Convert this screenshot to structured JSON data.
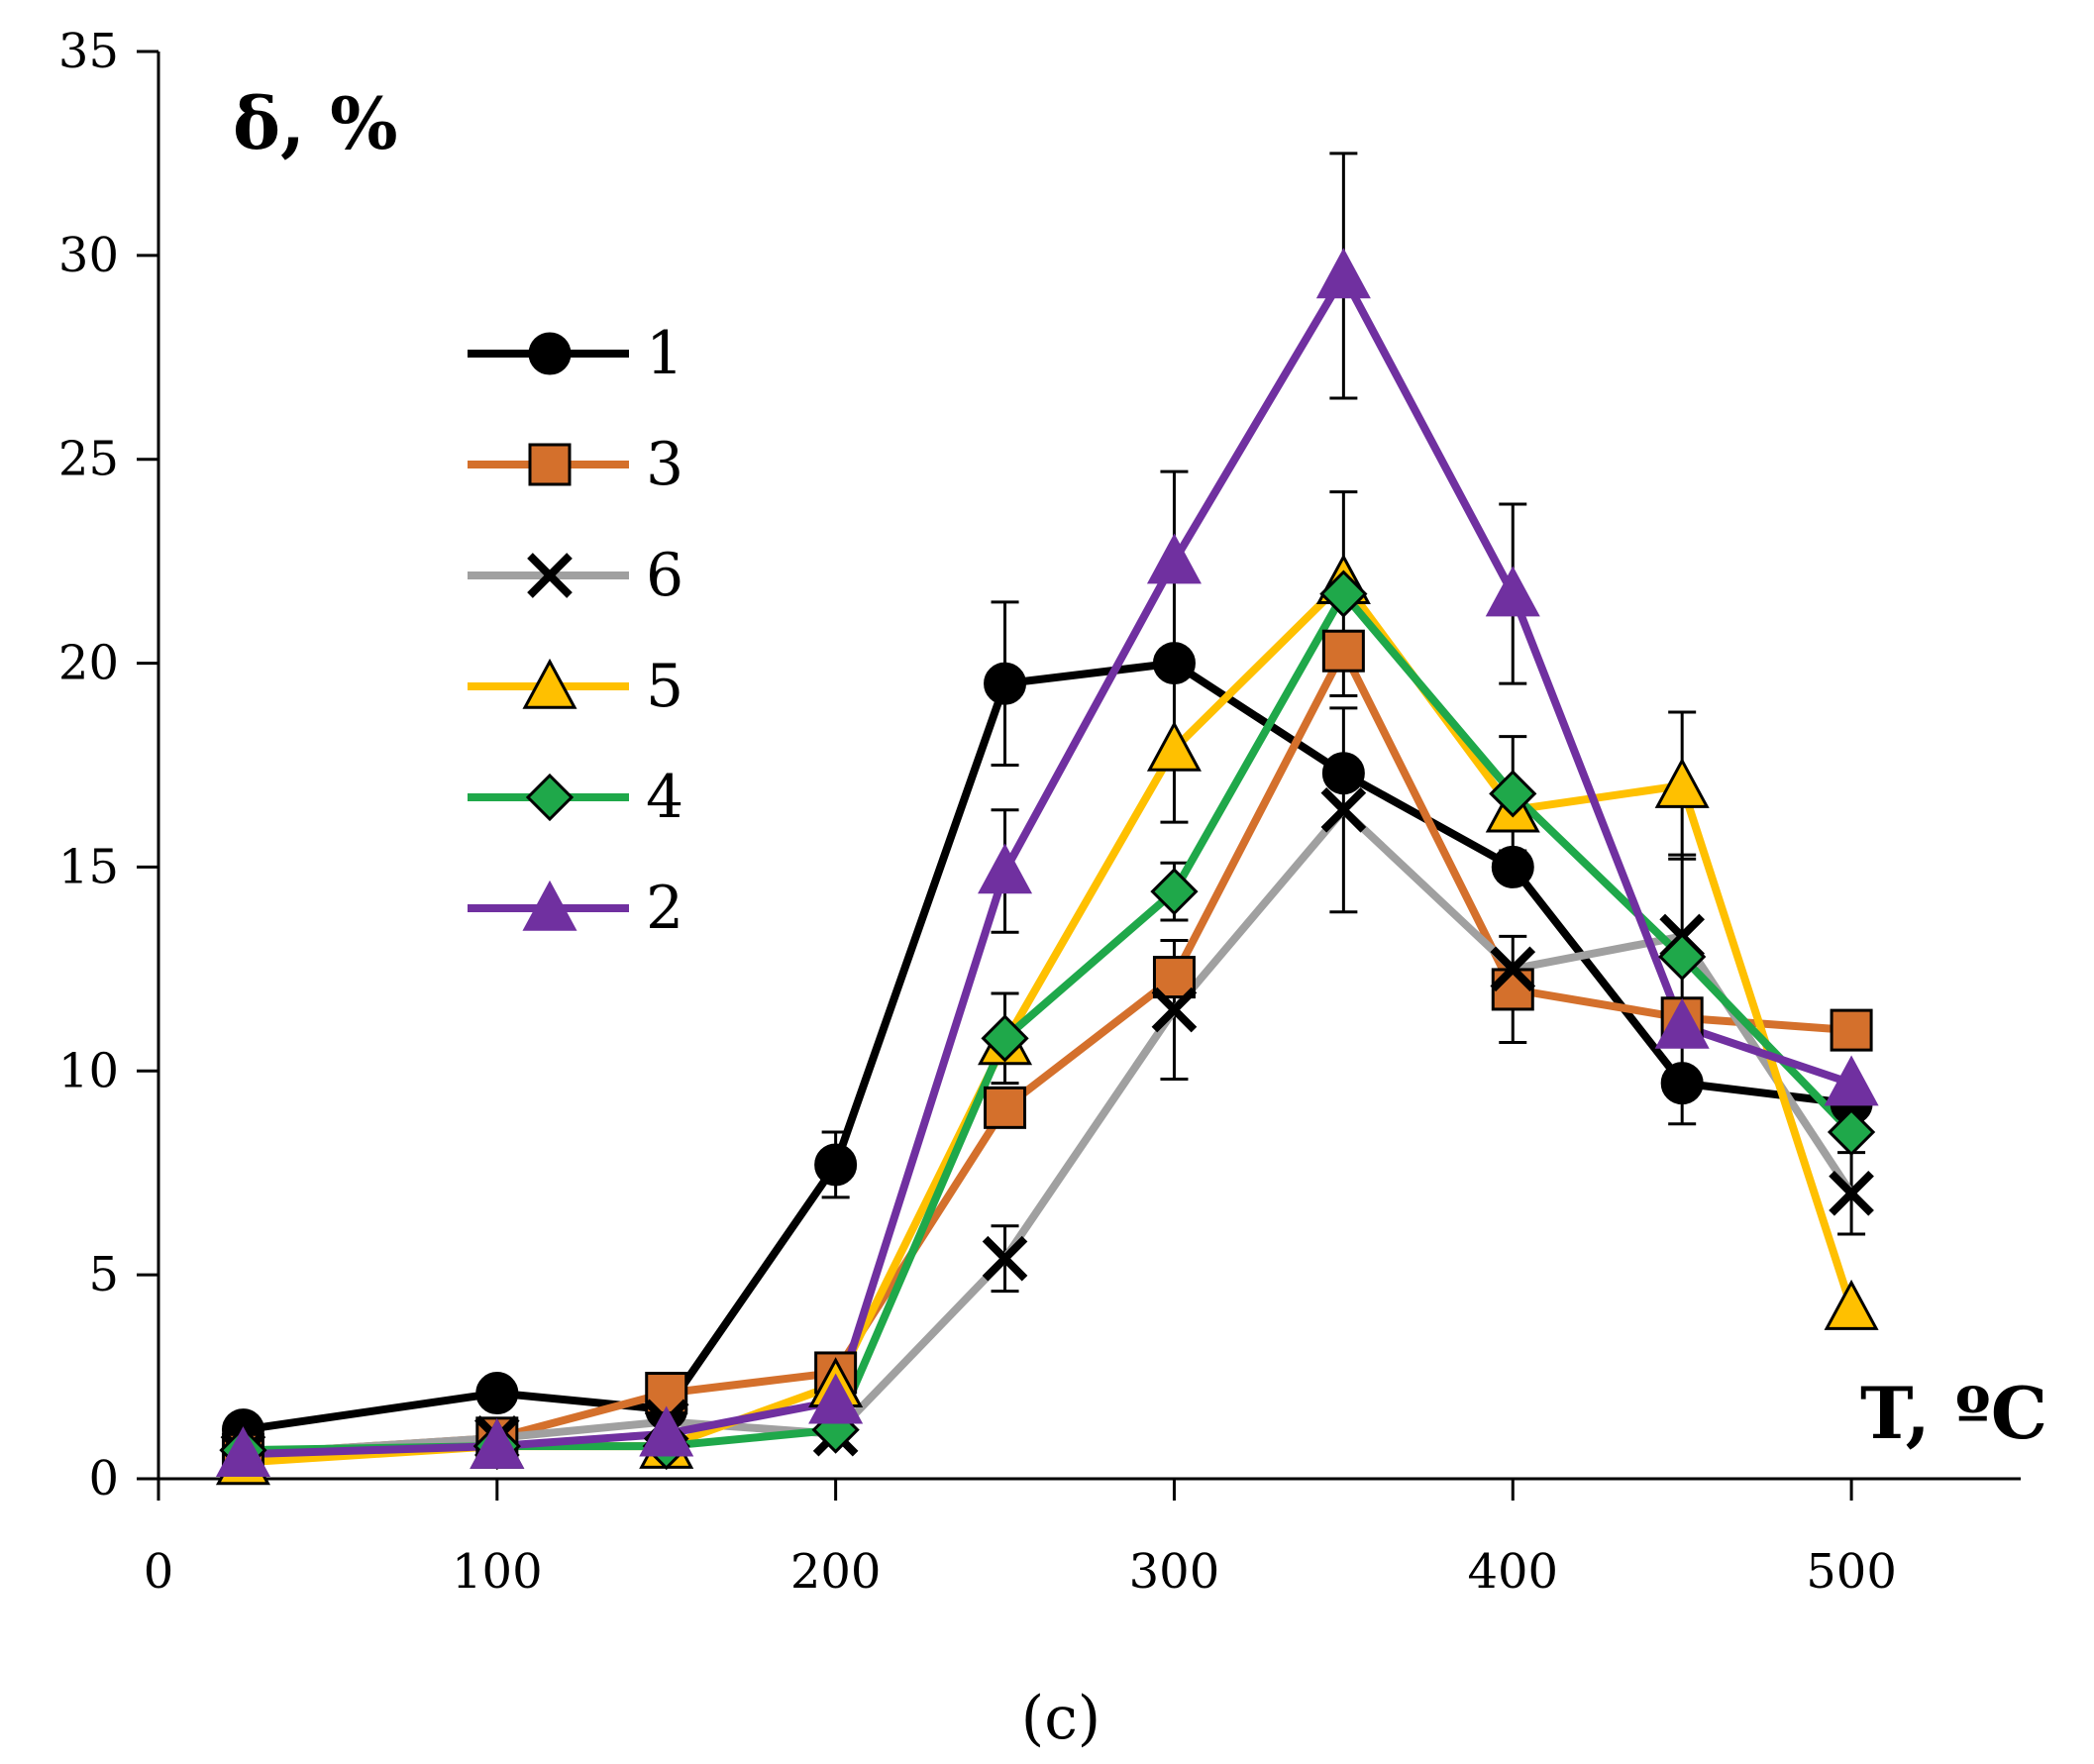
{
  "chart_data": {
    "type": "line",
    "ylabel": "δ, %",
    "xlabel": "T, ºC",
    "panel_label": "(c)",
    "xlim": [
      0,
      550
    ],
    "ylim": [
      0,
      35
    ],
    "x_ticks": [
      "0",
      "100",
      "200",
      "300",
      "400",
      "500"
    ],
    "y_ticks": [
      "0",
      "5",
      "10",
      "15",
      "20",
      "25",
      "30",
      "35"
    ],
    "grid": false,
    "legend_position": "upper-left",
    "x": [
      25,
      100,
      150,
      200,
      250,
      300,
      350,
      400,
      450,
      500
    ],
    "series": [
      {
        "name": "1",
        "color": "#000000",
        "marker": "circle",
        "values": [
          1.2,
          2.1,
          1.7,
          7.7,
          19.5,
          20.0,
          17.3,
          15.0,
          9.7,
          9.2
        ],
        "errors": [
          0,
          0,
          0,
          0.8,
          2.0,
          0,
          0,
          0,
          1.0,
          0
        ]
      },
      {
        "name": "3",
        "color": "#D4702C",
        "marker": "square",
        "values": [
          0.6,
          1.0,
          2.1,
          2.6,
          9.1,
          12.3,
          20.3,
          12.0,
          11.3,
          11.0
        ],
        "errors": [
          0,
          0,
          0,
          0,
          0,
          0,
          0,
          1.3,
          0,
          0
        ]
      },
      {
        "name": "6",
        "color": "#A0A0A0",
        "marker": "x",
        "values": [
          0.6,
          1.0,
          1.4,
          1.1,
          5.4,
          11.5,
          16.4,
          12.5,
          13.3,
          7.0
        ],
        "errors": [
          0,
          0,
          0,
          0,
          0.8,
          1.7,
          2.5,
          0,
          2.0,
          1.0
        ]
      },
      {
        "name": "5",
        "color": "#FFC000",
        "marker": "triangle-open",
        "values": [
          0.4,
          0.8,
          0.8,
          2.3,
          10.7,
          17.9,
          22.0,
          16.4,
          17.0,
          4.2
        ],
        "errors": [
          0,
          0,
          0,
          0,
          0,
          1.8,
          0,
          0,
          1.8,
          0
        ]
      },
      {
        "name": "4",
        "color": "#1FA84A",
        "marker": "diamond",
        "values": [
          0.7,
          0.8,
          0.8,
          1.2,
          10.8,
          14.4,
          21.7,
          16.8,
          12.8,
          8.5
        ],
        "errors": [
          0,
          0,
          0,
          0,
          1.1,
          0.7,
          2.5,
          1.4,
          0,
          0
        ]
      },
      {
        "name": "2",
        "color": "#7030A0",
        "marker": "triangle",
        "values": [
          0.6,
          0.8,
          1.1,
          1.9,
          14.9,
          22.5,
          29.5,
          21.7,
          11.1,
          9.7
        ],
        "errors": [
          0,
          0,
          0,
          0,
          1.5,
          2.2,
          3.0,
          2.2,
          0,
          0
        ]
      }
    ]
  }
}
